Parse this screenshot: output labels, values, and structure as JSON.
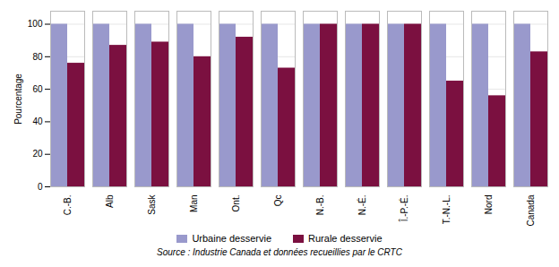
{
  "chart_data": {
    "type": "bar",
    "categories": [
      "C.-B.",
      "Alb",
      "Sask",
      "Man",
      "Ont.",
      "Qc",
      "N.-B.",
      "N.-É.",
      "Î.-P.-É.",
      "T.-N.-L.",
      "Nord",
      "Canada"
    ],
    "series": [
      {
        "name": "Urbaine desservie",
        "color": "#9999cc",
        "values": [
          100,
          100,
          100,
          100,
          100,
          100,
          100,
          100,
          100,
          100,
          100,
          100
        ]
      },
      {
        "name": "Rurale desservie",
        "color": "#7b1040",
        "values": [
          76,
          87,
          89,
          80,
          92,
          73,
          100,
          100,
          100,
          65,
          56,
          83
        ]
      }
    ],
    "ylabel": "Pourcentage",
    "ylim": [
      0,
      108
    ],
    "yticks": [
      0,
      20,
      40,
      60,
      80,
      100
    ],
    "grid": true,
    "legend": "bottom",
    "annotations": [
      "Source : Industrie Canada et données recueillies par le CRTC"
    ]
  }
}
